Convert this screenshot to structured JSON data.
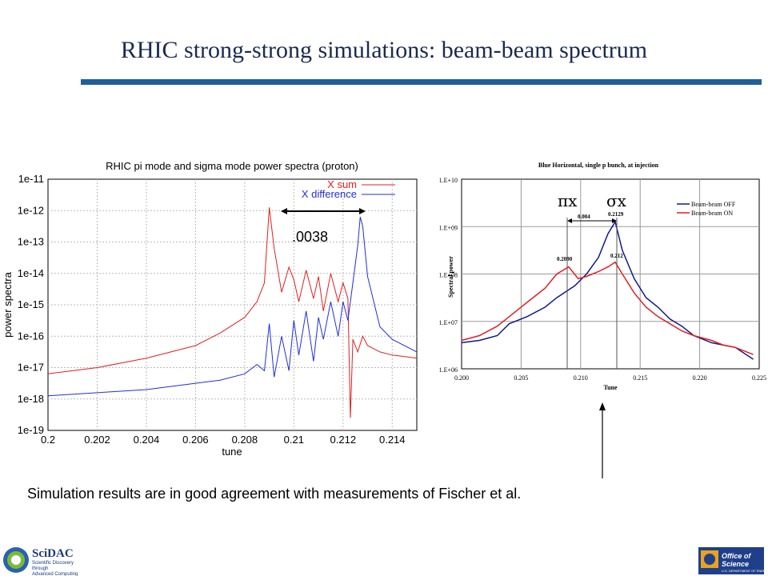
{
  "slide": {
    "title": "RHIC strong-strong simulations: beam-beam spectrum",
    "caption": "Simulation results are in good agreement with measurements of Fischer et al.",
    "logo_left": "SciDAC Scientific Discovery through Advanced Computing",
    "logo_right": "Office of Science U.S. DEPARTMENT OF ENERGY"
  },
  "colors": {
    "accent_rule": "#1f5f99",
    "title": "#1a2a50",
    "red": "#e21f1f",
    "blue": "#1f2fd8",
    "meas_blue": "#101a8a"
  },
  "chart_data": [
    {
      "type": "line",
      "title": "RHIC pi mode and sigma mode power spectra (proton)",
      "xlabel": "tune",
      "ylabel": "power spectra",
      "log_y": true,
      "xlim": [
        0.2,
        0.215
      ],
      "ylim_exp": [
        -19,
        -11
      ],
      "xticks": [
        "0.2",
        "0.202",
        "0.204",
        "0.206",
        "0.208",
        "0.21",
        "0.212",
        "0.214"
      ],
      "yticks": [
        "1e-11",
        "1e-12",
        "1e-13",
        "1e-14",
        "1e-15",
        "1e-16",
        "1e-17",
        "1e-18",
        "1e-19"
      ],
      "legend": [
        "X sum",
        "X difference"
      ],
      "legend_position": "top-right",
      "annotation": ".0038",
      "series": [
        {
          "name": "X sum",
          "color": "#e21f1f",
          "x": [
            0.2,
            0.202,
            0.204,
            0.206,
            0.207,
            0.208,
            0.2085,
            0.2088,
            0.209,
            0.2092,
            0.2095,
            0.2098,
            0.21,
            0.2102,
            0.2105,
            0.2108,
            0.211,
            0.2112,
            0.2115,
            0.2118,
            0.212,
            0.2122,
            0.2123,
            0.2124,
            0.2126,
            0.2128,
            0.213,
            0.2135,
            0.214,
            0.215
          ],
          "y_exp": [
            -17.2,
            -17.0,
            -16.7,
            -16.3,
            -15.9,
            -15.4,
            -14.9,
            -14.3,
            -11.9,
            -13.2,
            -14.6,
            -13.8,
            -14.2,
            -14.9,
            -13.9,
            -14.8,
            -14.1,
            -15.2,
            -14.0,
            -14.9,
            -14.3,
            -14.8,
            -18.6,
            -16.1,
            -16.5,
            -16.0,
            -16.3,
            -16.5,
            -16.6,
            -16.7
          ]
        },
        {
          "name": "X difference",
          "color": "#1f2fd8",
          "x": [
            0.2,
            0.202,
            0.204,
            0.206,
            0.207,
            0.208,
            0.2085,
            0.2088,
            0.209,
            0.2092,
            0.2095,
            0.2098,
            0.21,
            0.2102,
            0.2105,
            0.2108,
            0.211,
            0.2112,
            0.2115,
            0.2118,
            0.212,
            0.2122,
            0.2124,
            0.2126,
            0.2127,
            0.2128,
            0.213,
            0.2135,
            0.214,
            0.215
          ],
          "y_exp": [
            -17.9,
            -17.8,
            -17.7,
            -17.5,
            -17.4,
            -17.2,
            -16.9,
            -17.1,
            -15.6,
            -17.3,
            -16.0,
            -17.1,
            -15.5,
            -16.6,
            -15.2,
            -16.8,
            -15.4,
            -16.1,
            -14.9,
            -16.0,
            -14.9,
            -15.5,
            -14.3,
            -13.1,
            -12.2,
            -12.5,
            -14.1,
            -15.7,
            -16.1,
            -16.5
          ]
        }
      ]
    },
    {
      "type": "line",
      "title": "Blue Horizontal, single p bunch, at injection",
      "xlabel": "Tune",
      "ylabel": "Spectral power",
      "log_y": true,
      "xlim": [
        0.2,
        0.225
      ],
      "ylim_exp": [
        6,
        10
      ],
      "xticks": [
        "0.200",
        "0.205",
        "0.210",
        "0.215",
        "0.220",
        "0.225"
      ],
      "yticks": [
        "1.E+10",
        "1.E+09",
        "1.E+08",
        "1.E+07",
        "1.E+06"
      ],
      "legend": [
        "Beam-beam OFF",
        "Beam-beam ON"
      ],
      "legend_position": "top-right",
      "annotations": [
        "πx",
        "σx",
        "0.004",
        "0.2129",
        "0.2090",
        "0.212"
      ],
      "series": [
        {
          "name": "Beam-beam OFF",
          "color": "#101a8a",
          "x": [
            0.2,
            0.2015,
            0.203,
            0.204,
            0.2055,
            0.207,
            0.208,
            0.2095,
            0.2105,
            0.2115,
            0.2123,
            0.2129,
            0.2135,
            0.2145,
            0.2155,
            0.2165,
            0.2175,
            0.2185,
            0.2195,
            0.221,
            0.222,
            0.223,
            0.2245
          ],
          "y_exp": [
            6.55,
            6.6,
            6.7,
            6.95,
            7.1,
            7.3,
            7.5,
            7.75,
            8.0,
            8.35,
            8.85,
            9.1,
            8.5,
            7.9,
            7.5,
            7.3,
            7.05,
            6.9,
            6.7,
            6.55,
            6.5,
            6.45,
            6.2
          ]
        },
        {
          "name": "Beam-beam ON",
          "color": "#e21f1f",
          "x": [
            0.2,
            0.2015,
            0.203,
            0.204,
            0.2055,
            0.207,
            0.208,
            0.209,
            0.2098,
            0.2105,
            0.2115,
            0.2123,
            0.2129,
            0.2135,
            0.2145,
            0.2155,
            0.2165,
            0.2175,
            0.2185,
            0.2195,
            0.221,
            0.222,
            0.223,
            0.2245
          ],
          "y_exp": [
            6.6,
            6.7,
            6.9,
            7.1,
            7.4,
            7.7,
            8.0,
            8.15,
            7.9,
            7.95,
            8.05,
            8.15,
            8.25,
            8.0,
            7.6,
            7.3,
            7.1,
            6.95,
            6.8,
            6.7,
            6.6,
            6.5,
            6.45,
            6.3
          ]
        }
      ]
    }
  ]
}
